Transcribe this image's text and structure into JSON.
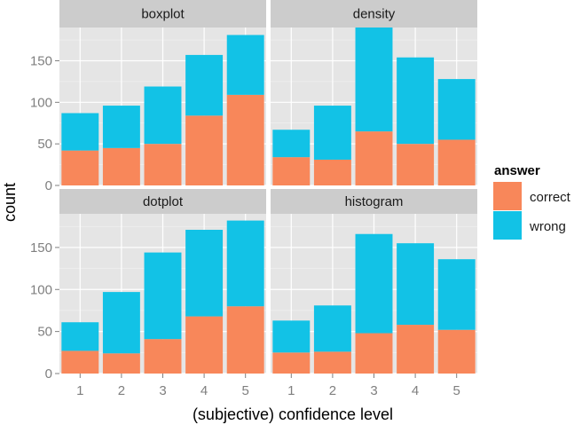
{
  "chart_data": {
    "type": "bar",
    "stacked": true,
    "xlabel": "(subjective) confidence level",
    "ylabel": "count",
    "ylim": [
      0,
      190
    ],
    "yticks": [
      0,
      50,
      100,
      150
    ],
    "categories": [
      "1",
      "2",
      "3",
      "4",
      "5"
    ],
    "legend": {
      "title": "answer",
      "placement": "right",
      "entries": [
        {
          "name": "correct",
          "color": "#F8875A"
        },
        {
          "name": "wrong",
          "color": "#12C2E6"
        }
      ]
    },
    "colors": {
      "panel_bg": "#E5E5E5",
      "strip_bg": "#CCCCCC",
      "grid_major": "#FFFFFF",
      "grid_minor": "#F2F2F2"
    },
    "grid": true,
    "facets": [
      {
        "title": "boxplot",
        "series": [
          {
            "name": "correct",
            "values": [
              42,
              45,
              50,
              84,
              109
            ]
          },
          {
            "name": "wrong",
            "values": [
              45,
              51,
              69,
              73,
              72
            ]
          }
        ]
      },
      {
        "title": "density",
        "series": [
          {
            "name": "correct",
            "values": [
              34,
              31,
              65,
              50,
              55
            ]
          },
          {
            "name": "wrong",
            "values": [
              33,
              65,
              125,
              104,
              73
            ]
          }
        ]
      },
      {
        "title": "dotplot",
        "series": [
          {
            "name": "correct",
            "values": [
              27,
              24,
              41,
              68,
              80
            ]
          },
          {
            "name": "wrong",
            "values": [
              34,
              73,
              103,
              103,
              102
            ]
          }
        ]
      },
      {
        "title": "histogram",
        "series": [
          {
            "name": "correct",
            "values": [
              25,
              26,
              48,
              58,
              52
            ]
          },
          {
            "name": "wrong",
            "values": [
              38,
              55,
              118,
              97,
              84
            ]
          }
        ]
      }
    ]
  }
}
